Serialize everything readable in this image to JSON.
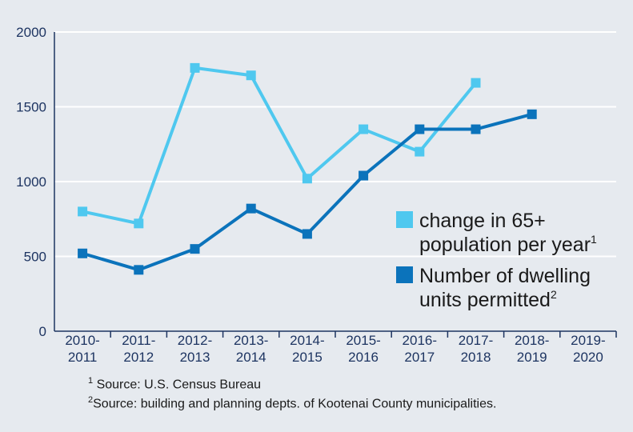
{
  "chart_data": {
    "type": "line",
    "title": "",
    "xlabel": "",
    "ylabel": "",
    "ylim": [
      0,
      2000
    ],
    "yticks": [
      0,
      500,
      1000,
      1500,
      2000
    ],
    "grid": true,
    "categories": [
      [
        "2010-",
        "2011"
      ],
      [
        "2011-",
        "2012"
      ],
      [
        "2012-",
        "2013"
      ],
      [
        "2013-",
        "2014"
      ],
      [
        "2014-",
        "2015"
      ],
      [
        "2015-",
        "2016"
      ],
      [
        "2016-",
        "2017"
      ],
      [
        "2017-",
        "2018"
      ],
      [
        "2018-",
        "2019"
      ],
      [
        "2019-",
        "2020"
      ]
    ],
    "series": [
      {
        "name": "change in 65+ population per year",
        "legend_lines": [
          "change in 65+",
          "population per year"
        ],
        "sup": "1",
        "color": "#4fc8ef",
        "values": [
          800,
          720,
          1760,
          1710,
          1020,
          1350,
          1200,
          1660,
          null,
          null
        ]
      },
      {
        "name": "Number of dwelling units permitted",
        "legend_lines": [
          "Number of dwelling",
          "units permitted"
        ],
        "sup": "2",
        "color": "#0b73bb",
        "values": [
          520,
          410,
          550,
          820,
          650,
          1040,
          1350,
          1350,
          1450,
          null
        ]
      }
    ],
    "legend_position": "center-right"
  },
  "footnotes": [
    {
      "mark": "1",
      "text": "Source: U.S. Census Bureau"
    },
    {
      "mark": "2",
      "text": "Source: building and planning depts. of Kootenai County municipalities."
    }
  ]
}
